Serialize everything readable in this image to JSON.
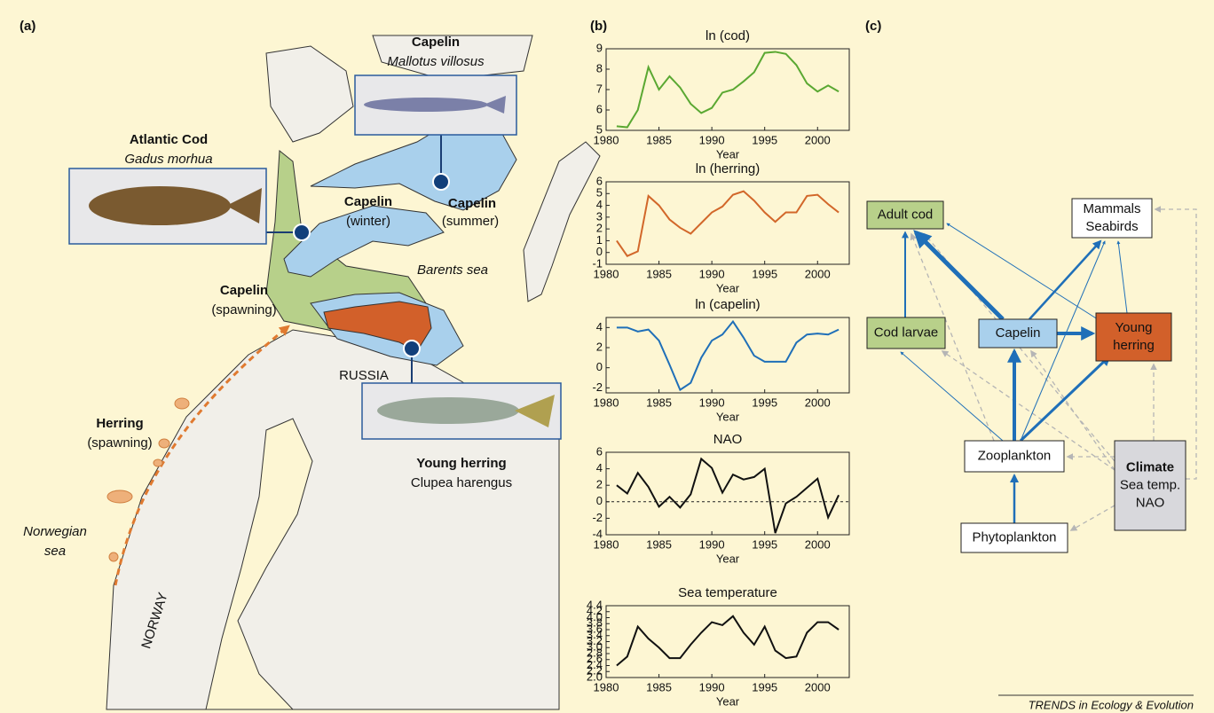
{
  "panels": {
    "a": "(a)",
    "b": "(b)",
    "c": "(c)"
  },
  "map": {
    "capelin_box": {
      "name": "Capelin",
      "latin": "Mallotus villosus"
    },
    "cod_box": {
      "name": "Atlantic Cod",
      "latin": "Gadus morhua"
    },
    "herring_box": {
      "name": "Young herring",
      "latin": "Clupea harengus"
    },
    "capelin_winter": {
      "name": "Capelin",
      "note": "(winter)"
    },
    "capelin_summer": {
      "name": "Capelin",
      "note": "(summer)"
    },
    "capelin_spawning": {
      "name": "Capelin",
      "note": "(spawning)"
    },
    "herring_spawning": {
      "name": "Herring",
      "note": "(spawning)"
    },
    "barents_sea": "Barents sea",
    "norwegian_sea": [
      "Norwegian",
      "sea"
    ],
    "russia": "RUSSIA",
    "norway": "NORWAY"
  },
  "chart_data": [
    {
      "type": "line",
      "title": "ln (cod)",
      "xlabel": "Year",
      "color": "#5aa832",
      "x": [
        1981,
        1982,
        1983,
        1984,
        1985,
        1986,
        1987,
        1988,
        1989,
        1990,
        1991,
        1992,
        1993,
        1994,
        1995,
        1996,
        1997,
        1998,
        1999,
        2000,
        2001,
        2002
      ],
      "values": [
        5.2,
        5.15,
        6.0,
        8.1,
        7.0,
        7.65,
        7.1,
        6.3,
        5.85,
        6.1,
        6.85,
        7.0,
        7.4,
        7.85,
        8.8,
        8.85,
        8.75,
        8.2,
        7.3,
        6.9,
        7.2,
        6.9
      ],
      "xlim": [
        1980,
        2003
      ],
      "xticks": [
        1980,
        1985,
        1990,
        1995,
        2000
      ],
      "ylim": [
        5,
        9
      ],
      "yticks": [
        5,
        6,
        7,
        8,
        9
      ]
    },
    {
      "type": "line",
      "title": "ln (herring)",
      "xlabel": "Year",
      "color": "#d2672a",
      "x": [
        1981,
        1982,
        1983,
        1984,
        1985,
        1986,
        1987,
        1988,
        1989,
        1990,
        1991,
        1992,
        1993,
        1994,
        1995,
        1996,
        1997,
        1998,
        1999,
        2000,
        2001,
        2002
      ],
      "values": [
        1.0,
        -0.3,
        0.1,
        4.8,
        4.0,
        2.8,
        2.1,
        1.6,
        2.5,
        3.4,
        3.9,
        4.9,
        5.2,
        4.4,
        3.4,
        2.6,
        3.4,
        3.4,
        4.8,
        4.9,
        4.1,
        3.4
      ],
      "xlim": [
        1980,
        2003
      ],
      "xticks": [
        1980,
        1985,
        1990,
        1995,
        2000
      ],
      "ylim": [
        -1,
        6
      ],
      "yticks": [
        -1,
        0,
        1,
        2,
        3,
        4,
        5,
        6
      ]
    },
    {
      "type": "line",
      "title": "ln (capelin)",
      "xlabel": "Year",
      "color": "#1f6fb8",
      "x": [
        1981,
        1982,
        1983,
        1984,
        1985,
        1986,
        1987,
        1988,
        1989,
        1990,
        1991,
        1992,
        1993,
        1994,
        1995,
        1996,
        1997,
        1998,
        1999,
        2000,
        2001,
        2002
      ],
      "values": [
        4.0,
        4.0,
        3.6,
        3.8,
        2.7,
        0.3,
        -2.2,
        -1.5,
        1.0,
        2.7,
        3.3,
        4.6,
        3.0,
        1.2,
        0.6,
        0.6,
        0.6,
        2.5,
        3.3,
        3.4,
        3.3,
        3.8
      ],
      "xlim": [
        1980,
        2003
      ],
      "xticks": [
        1980,
        1985,
        1990,
        1995,
        2000
      ],
      "ylim": [
        -2.5,
        5
      ],
      "yticks": [
        -2,
        0,
        2,
        4
      ]
    },
    {
      "type": "line",
      "title": "NAO",
      "xlabel": "Year",
      "color": "#111111",
      "hline": 0,
      "x": [
        1981,
        1982,
        1983,
        1984,
        1985,
        1986,
        1987,
        1988,
        1989,
        1990,
        1991,
        1992,
        1993,
        1994,
        1995,
        1996,
        1997,
        1998,
        1999,
        2000,
        2001,
        2002
      ],
      "values": [
        2.0,
        1.0,
        3.5,
        1.8,
        -0.6,
        0.6,
        -0.7,
        0.9,
        5.2,
        4.1,
        1.1,
        3.3,
        2.7,
        3.0,
        4.0,
        -3.8,
        -0.2,
        0.6,
        1.7,
        2.8,
        -1.9,
        0.8
      ],
      "xlim": [
        1980,
        2003
      ],
      "xticks": [
        1980,
        1985,
        1990,
        1995,
        2000
      ],
      "ylim": [
        -4,
        6
      ],
      "yticks": [
        -4,
        -2,
        0,
        2,
        4,
        6
      ]
    },
    {
      "type": "line",
      "title": "Sea temperature",
      "xlabel": "Year",
      "color": "#111111",
      "x": [
        1981,
        1982,
        1983,
        1984,
        1985,
        1986,
        1987,
        1988,
        1989,
        1990,
        1991,
        1992,
        1993,
        1994,
        1995,
        1996,
        1997,
        1998,
        1999,
        2000,
        2001,
        2002
      ],
      "values": [
        2.4,
        2.7,
        3.7,
        3.3,
        3.0,
        2.65,
        2.65,
        3.1,
        3.5,
        3.85,
        3.75,
        4.05,
        3.5,
        3.1,
        3.7,
        2.9,
        2.65,
        2.7,
        3.5,
        3.85,
        3.85,
        3.6
      ],
      "xlim": [
        1980,
        2003
      ],
      "xticks": [
        1980,
        1985,
        1990,
        1995,
        2000
      ],
      "ylim": [
        2.0,
        4.4
      ],
      "yticks": [
        {
          "value": 2.0,
          "label": "2.0"
        },
        {
          "value": 2.2,
          "label": "2.2"
        },
        {
          "value": 2.4,
          "label": "2.4"
        },
        {
          "value": 2.6,
          "label": "2.6"
        },
        {
          "value": 2.8,
          "label": "2.8"
        },
        {
          "value": 3.0,
          "label": "3.0"
        },
        {
          "value": 3.2,
          "label": "3.2"
        },
        {
          "value": 3.4,
          "label": "3.4"
        },
        {
          "value": 3.6,
          "label": "3.6"
        },
        {
          "value": 3.8,
          "label": "3.8"
        },
        {
          "value": 4.0,
          "label": "4.0"
        },
        {
          "value": 4.2,
          "label": "4.2"
        },
        {
          "value": 4.4,
          "label": "4.4"
        }
      ]
    }
  ],
  "diagram": {
    "nodes": [
      {
        "lines": [
          "Adult cod"
        ]
      },
      {
        "lines": [
          "Mammals",
          "Seabirds"
        ]
      },
      {
        "lines": [
          "Cod larvae"
        ]
      },
      {
        "lines": [
          "Capelin"
        ]
      },
      {
        "lines": [
          "Young",
          "herring"
        ]
      },
      {
        "lines": [
          "Zooplankton"
        ]
      },
      {
        "lines": [
          "Climate",
          "Sea temp.",
          "NAO"
        ]
      },
      {
        "lines": [
          "Phytoplankton"
        ]
      }
    ]
  },
  "footer": "TRENDS in Ecology & Evolution"
}
